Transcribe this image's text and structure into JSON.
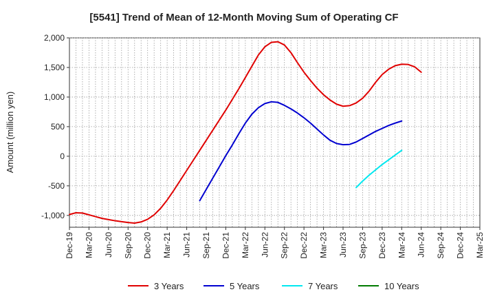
{
  "chart_data": {
    "type": "line",
    "title": "[5541]  Trend of Mean of 12-Month Moving Sum of Operating CF",
    "xlabel": "",
    "ylabel": "Amount (million yen)",
    "ylim": [
      -1200,
      2000
    ],
    "yticks": [
      2000,
      1500,
      1000,
      500,
      0,
      -500,
      -1000
    ],
    "ytick_labels": [
      "2,000",
      "1,500",
      "1,000",
      "500",
      "0",
      "-500",
      "-1,000"
    ],
    "x_range": [
      "Dec-19",
      "Mar-25"
    ],
    "x_tick_labels": [
      "Dec-19",
      "Mar-20",
      "Jun-20",
      "Sep-20",
      "Dec-20",
      "Mar-21",
      "Jun-21",
      "Sep-21",
      "Dec-21",
      "Mar-22",
      "Jun-22",
      "Sep-22",
      "Dec-22",
      "Mar-23",
      "Jun-23",
      "Sep-23",
      "Dec-23",
      "Mar-24",
      "Jun-24",
      "Sep-24",
      "Dec-24",
      "Mar-25"
    ],
    "grid": true,
    "legend_position": "bottom",
    "series": [
      {
        "name": "3 Years",
        "color": "#e00000",
        "start": "Dec-19",
        "values": [
          -985,
          -955,
          -960,
          -990,
          -1020,
          -1050,
          -1070,
          -1090,
          -1105,
          -1120,
          -1130,
          -1110,
          -1065,
          -990,
          -880,
          -740,
          -580,
          -410,
          -240,
          -70,
          100,
          270,
          440,
          610,
          780,
          960,
          1140,
          1330,
          1520,
          1710,
          1850,
          1925,
          1935,
          1880,
          1750,
          1580,
          1420,
          1280,
          1150,
          1040,
          950,
          880,
          845,
          855,
          900,
          980,
          1100,
          1250,
          1380,
          1470,
          1530,
          1555,
          1550,
          1510,
          1420
        ]
      },
      {
        "name": "5 Years",
        "color": "#0000d0",
        "start": "Aug-21",
        "values": [
          -750,
          -560,
          -370,
          -180,
          10,
          190,
          380,
          560,
          710,
          820,
          890,
          920,
          910,
          860,
          800,
          730,
          650,
          560,
          460,
          360,
          270,
          215,
          195,
          200,
          240,
          300,
          360,
          420,
          470,
          520,
          560,
          595
        ]
      },
      {
        "name": "7 Years",
        "color": "#00e8f0",
        "start": "Aug-23",
        "values": [
          -530,
          -420,
          -320,
          -230,
          -140,
          -60,
          20,
          100
        ]
      },
      {
        "name": "10 Years",
        "color": "#007a00",
        "start": "",
        "values": []
      }
    ]
  }
}
